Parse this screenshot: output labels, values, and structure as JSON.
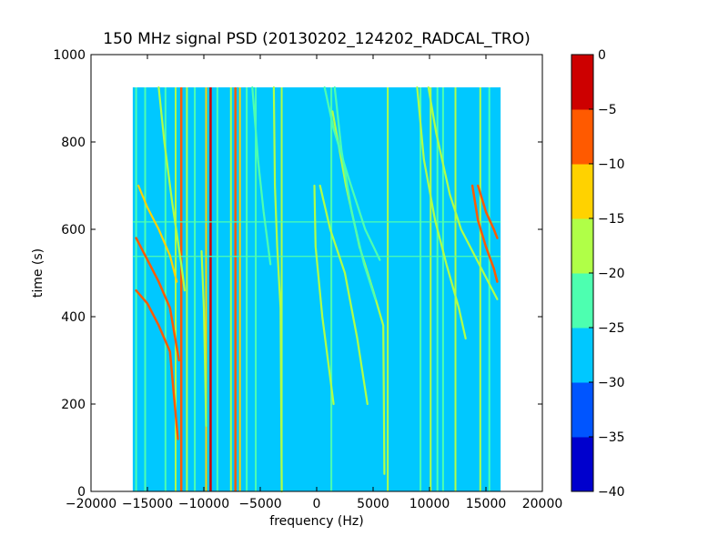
{
  "chart_data": {
    "type": "heatmap",
    "title": "150 MHz signal PSD (20130202_124202_RADCAL_TRO)",
    "xlabel": "frequency (Hz)",
    "ylabel": "time (s)",
    "xlim": [
      -20000,
      20000
    ],
    "ylim": [
      0,
      1000
    ],
    "xticks": [
      -20000,
      -15000,
      -10000,
      -5000,
      0,
      5000,
      10000,
      15000,
      20000
    ],
    "xtick_labels": [
      "−20000",
      "−15000",
      "−10000",
      "−5000",
      "0",
      "5000",
      "10000",
      "15000",
      "20000"
    ],
    "yticks": [
      0,
      200,
      400,
      600,
      800,
      1000
    ],
    "ytick_labels": [
      "0",
      "200",
      "400",
      "600",
      "800",
      "1000"
    ],
    "data_extent": {
      "freq_min": -16300,
      "freq_max": 16300,
      "time_min": 0,
      "time_max": 925
    },
    "colormap": "jet",
    "colorbar": {
      "levels": [
        -40,
        -35,
        -30,
        -25,
        -20,
        -15,
        -10,
        -5,
        0
      ],
      "tick_labels": [
        "−40",
        "−35",
        "−30",
        "−25",
        "−20",
        "−15",
        "−10",
        "−5",
        "0"
      ],
      "colors": [
        "#0000cd",
        "#0055ff",
        "#00c8ff",
        "#4dffb0",
        "#b0ff47",
        "#ffd200",
        "#ff5a00",
        "#cd0000"
      ]
    },
    "background_level": -27.5,
    "vertical_lines": [
      {
        "freq": -16000,
        "level": -22.5
      },
      {
        "freq": -15200,
        "level": -22.5
      },
      {
        "freq": -13400,
        "level": -22.5
      },
      {
        "freq": -12500,
        "level": -17.5
      },
      {
        "freq": -12000,
        "level": -7.5
      },
      {
        "freq": -11500,
        "level": -17.5
      },
      {
        "freq": -10800,
        "level": -22.5
      },
      {
        "freq": -9800,
        "level": -12.5
      },
      {
        "freq": -9400,
        "level": -2.5
      },
      {
        "freq": -8800,
        "level": -22.5
      },
      {
        "freq": -7600,
        "level": -17.5
      },
      {
        "freq": -7200,
        "level": -7.5
      },
      {
        "freq": -6800,
        "level": -12.5
      },
      {
        "freq": -6200,
        "level": -22.5
      },
      {
        "freq": -5400,
        "level": -22.5
      },
      {
        "freq": -3100,
        "level": -17.5
      },
      {
        "freq": 1300,
        "level": -22.5
      },
      {
        "freq": 6300,
        "level": -17.5
      },
      {
        "freq": 9200,
        "level": -22.5
      },
      {
        "freq": 10100,
        "level": -17.5
      },
      {
        "freq": 10700,
        "level": -22.5
      },
      {
        "freq": 11200,
        "level": -22.5
      },
      {
        "freq": 12300,
        "level": -17.5
      },
      {
        "freq": 14500,
        "level": -17.5
      },
      {
        "freq": 15300,
        "level": -22.5
      }
    ],
    "drift_tracks": [
      {
        "points": [
          [
            -3800,
            925
          ],
          [
            -3700,
            700
          ],
          [
            -3500,
            560
          ],
          [
            -3200,
            420
          ],
          [
            -3100,
            0
          ]
        ],
        "level": -17.5
      },
      {
        "points": [
          [
            -200,
            700
          ],
          [
            -100,
            560
          ],
          [
            500,
            400
          ],
          [
            1000,
            300
          ],
          [
            1500,
            200
          ]
        ],
        "level": -17.5
      },
      {
        "points": [
          [
            300,
            700
          ],
          [
            1200,
            600
          ],
          [
            2500,
            500
          ],
          [
            3600,
            350
          ],
          [
            4500,
            200
          ]
        ],
        "level": -17.5
      },
      {
        "points": [
          [
            1400,
            870
          ],
          [
            2600,
            700
          ],
          [
            3800,
            560
          ],
          [
            5000,
            460
          ],
          [
            5900,
            380
          ],
          [
            6000,
            40
          ]
        ],
        "level": -17.5
      },
      {
        "points": [
          [
            700,
            925
          ],
          [
            1500,
            830
          ],
          [
            2800,
            720
          ],
          [
            4300,
            600
          ],
          [
            5600,
            530
          ]
        ],
        "level": -22.5
      },
      {
        "points": [
          [
            -14000,
            925
          ],
          [
            -13500,
            800
          ],
          [
            -12800,
            660
          ],
          [
            -12000,
            520
          ],
          [
            -11700,
            460
          ]
        ],
        "level": -17.5
      },
      {
        "points": [
          [
            -16000,
            580
          ],
          [
            -15000,
            530
          ],
          [
            -14000,
            480
          ],
          [
            -13000,
            420
          ],
          [
            -12200,
            300
          ]
        ],
        "level": -7.5
      },
      {
        "points": [
          [
            -16000,
            460
          ],
          [
            -15000,
            430
          ],
          [
            -14000,
            380
          ],
          [
            -13000,
            320
          ],
          [
            -12300,
            120
          ]
        ],
        "level": -7.5
      },
      {
        "points": [
          [
            -15800,
            700
          ],
          [
            -15000,
            650
          ],
          [
            -14000,
            600
          ],
          [
            -13000,
            540
          ],
          [
            -12400,
            480
          ]
        ],
        "level": -12.5
      },
      {
        "points": [
          [
            8900,
            925
          ],
          [
            9500,
            760
          ],
          [
            10500,
            620
          ],
          [
            11500,
            520
          ],
          [
            12600,
            420
          ],
          [
            13200,
            350
          ]
        ],
        "level": -17.5
      },
      {
        "points": [
          [
            9900,
            925
          ],
          [
            10600,
            820
          ],
          [
            11800,
            680
          ],
          [
            12800,
            600
          ],
          [
            14000,
            540
          ],
          [
            15200,
            480
          ],
          [
            16000,
            440
          ]
        ],
        "level": -17.5
      },
      {
        "points": [
          [
            13800,
            700
          ],
          [
            14300,
            620
          ],
          [
            15000,
            560
          ],
          [
            15700,
            510
          ],
          [
            16000,
            480
          ]
        ],
        "level": -7.5
      },
      {
        "points": [
          [
            14300,
            700
          ],
          [
            15000,
            640
          ],
          [
            15700,
            600
          ],
          [
            16000,
            580
          ]
        ],
        "level": -7.5
      },
      {
        "points": [
          [
            -10200,
            550
          ],
          [
            -10000,
            420
          ],
          [
            -9900,
            300
          ],
          [
            -9800,
            150
          ]
        ],
        "level": -17.5
      },
      {
        "points": [
          [
            -5700,
            925
          ],
          [
            -5200,
            760
          ],
          [
            -4700,
            640
          ],
          [
            -4100,
            520
          ]
        ],
        "level": -22.5
      },
      {
        "points": [
          [
            1600,
            925
          ],
          [
            2200,
            780
          ],
          [
            3100,
            640
          ],
          [
            4200,
            520
          ],
          [
            5200,
            440
          ]
        ],
        "level": -22.5
      }
    ],
    "horizontal_lines": [
      {
        "time": 617,
        "level": -22.5
      },
      {
        "time": 538,
        "level": -22.5
      }
    ]
  }
}
